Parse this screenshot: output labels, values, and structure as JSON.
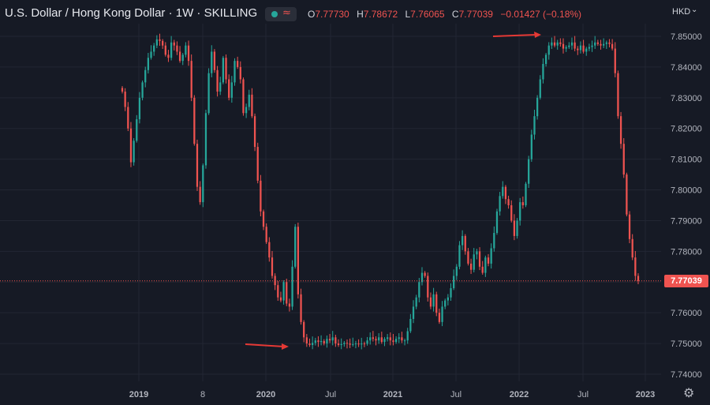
{
  "header": {
    "title": "U.S. Dollar / Hong Kong Dollar · 1W · SKILLING",
    "ohlc": [
      {
        "key": "O",
        "value": "7.77730"
      },
      {
        "key": "H",
        "value": "7.78672"
      },
      {
        "key": "L",
        "value": "7.76065"
      },
      {
        "key": "C",
        "value": "7.77039"
      }
    ],
    "change": "−0.01427 (−0.18%)",
    "currency": "HKD",
    "icons": [
      "status-dot-icon",
      "wave-icon",
      "chevron-down-icon"
    ]
  },
  "last_price_label": "7.77039",
  "colors": {
    "background": "#161a25",
    "grid": "#222633",
    "up": "#26a69a",
    "down": "#ef5350",
    "arrow": "#e53935"
  },
  "chart_data": {
    "type": "candlestick",
    "symbol": "U.S. Dollar / Hong Kong Dollar",
    "interval": "1W",
    "ylim": [
      7.735,
      7.855
    ],
    "y_ticks": [
      "7.85000",
      "7.84000",
      "7.83000",
      "7.82000",
      "7.81000",
      "7.80000",
      "7.79000",
      "7.78000",
      "7.77000",
      "7.76000",
      "7.75000",
      "7.74000"
    ],
    "x_ticks": [
      "2019",
      "8",
      "2020",
      "Jul",
      "2021",
      "Jul",
      "2022",
      "Jul",
      "2023"
    ],
    "last_price": 7.77039,
    "series": [
      {
        "values": [
          7.832,
          7.827,
          7.82,
          7.809,
          7.816,
          7.823,
          7.83,
          7.835,
          7.839,
          7.843,
          7.845,
          7.847,
          7.849,
          7.8485,
          7.847,
          7.844,
          7.843,
          7.848,
          7.847,
          7.845,
          7.842,
          7.844,
          7.847,
          7.842,
          7.83,
          7.815,
          7.801,
          7.796,
          7.808,
          7.825,
          7.838,
          7.845,
          7.839,
          7.832,
          7.835,
          7.843,
          7.836,
          7.83,
          7.835,
          7.842,
          7.84,
          7.836,
          7.825,
          7.827,
          7.831,
          7.824,
          7.814,
          7.803,
          7.793,
          7.788,
          7.783,
          7.778,
          7.772,
          7.769,
          7.765,
          7.764,
          7.77,
          7.763,
          7.762,
          7.775,
          7.788,
          7.766,
          7.757,
          7.752,
          7.75,
          7.7495,
          7.7502,
          7.751,
          7.7505,
          7.7508,
          7.75,
          7.7515,
          7.751,
          7.752,
          7.75,
          7.7495,
          7.7498,
          7.7502,
          7.75,
          7.7496,
          7.7498,
          7.75,
          7.7497,
          7.75,
          7.7499,
          7.751,
          7.752,
          7.7515,
          7.751,
          7.752,
          7.7505,
          7.7515,
          7.752,
          7.751,
          7.7505,
          7.7515,
          7.752,
          7.751,
          7.751,
          7.754,
          7.758,
          7.762,
          7.765,
          7.77,
          7.773,
          7.772,
          7.765,
          7.762,
          7.766,
          7.76,
          7.757,
          7.762,
          7.764,
          7.765,
          7.768,
          7.772,
          7.775,
          7.782,
          7.785,
          7.78,
          7.776,
          7.774,
          7.779,
          7.78,
          7.775,
          7.773,
          7.778,
          7.776,
          7.781,
          7.786,
          7.793,
          7.798,
          7.801,
          7.797,
          7.795,
          7.79,
          7.785,
          7.79,
          7.796,
          7.795,
          7.802,
          7.81,
          7.818,
          7.824,
          7.83,
          7.836,
          7.841,
          7.844,
          7.847,
          7.848,
          7.847,
          7.848,
          7.8475,
          7.846,
          7.8465,
          7.847,
          7.848,
          7.846,
          7.8455,
          7.847,
          7.845,
          7.846,
          7.8465,
          7.847,
          7.848,
          7.8475,
          7.847,
          7.8475,
          7.848,
          7.8475,
          7.846,
          7.838,
          7.824,
          7.815,
          7.805,
          7.792,
          7.784,
          7.778,
          7.772,
          7.7704
        ]
      }
    ]
  }
}
